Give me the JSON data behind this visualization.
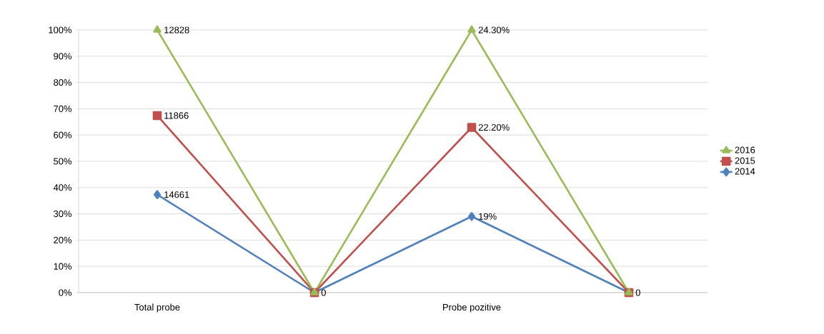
{
  "chart_data": {
    "type": "line",
    "categories": [
      "Total probe",
      null,
      "Probe pozitive",
      null
    ],
    "series": [
      {
        "name": "2016",
        "color": "#9bbb59",
        "marker": "triangle",
        "values": [
          100,
          0,
          100,
          0
        ],
        "value_labels": [
          null,
          "0",
          null,
          "0"
        ]
      },
      {
        "name": "2015",
        "color": "#c0504d",
        "marker": "square",
        "values": [
          67.4,
          0,
          62.9,
          0
        ]
      },
      {
        "name": "2014",
        "color": "#4f81bd",
        "marker": "diamond",
        "values": [
          37.3,
          0,
          29,
          0
        ]
      }
    ],
    "annotations": [
      {
        "text": "12828",
        "x": "Total probe",
        "y": 100
      },
      {
        "text": "11866",
        "x": "Total probe",
        "y": 67.4
      },
      {
        "text": "14661",
        "x": "Total probe",
        "y": 37.3
      },
      {
        "text": "24.30%",
        "x": "Probe pozitive",
        "y": 100
      },
      {
        "text": "22.20%",
        "x": "Probe pozitive",
        "y": 62.9
      },
      {
        "text": "19%",
        "x": "Probe pozitive",
        "y": 29
      }
    ],
    "ylim": [
      0,
      100
    ],
    "yticks": [
      {
        "value": 0,
        "label": "0%"
      },
      {
        "value": 10,
        "label": "10%"
      },
      {
        "value": 20,
        "label": "20%"
      },
      {
        "value": 30,
        "label": "30%"
      },
      {
        "value": 40,
        "label": "40%"
      },
      {
        "value": 50,
        "label": "50%"
      },
      {
        "value": 60,
        "label": "60%"
      },
      {
        "value": 70,
        "label": "70%"
      },
      {
        "value": 80,
        "label": "80%"
      },
      {
        "value": 90,
        "label": "90%"
      },
      {
        "value": 100,
        "label": "100%"
      }
    ],
    "grid": "y",
    "legend": "right"
  }
}
